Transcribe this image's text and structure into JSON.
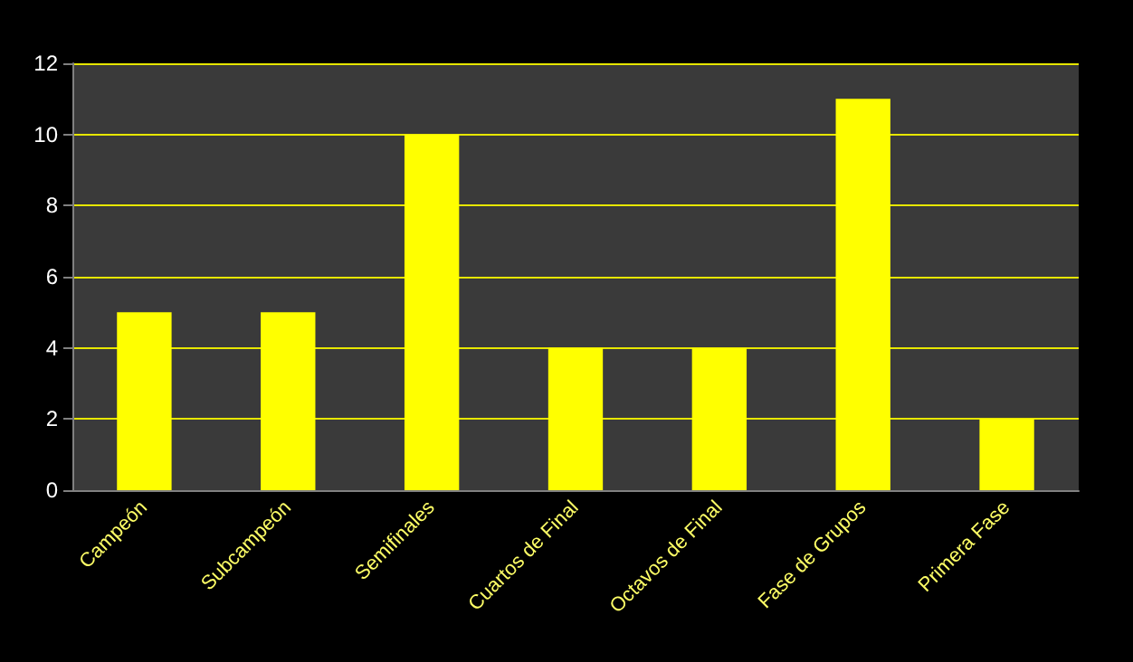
{
  "chart_data": {
    "type": "bar",
    "categories": [
      "Campeón",
      "Subcampeón",
      "Semifinales",
      "Cuartos de Final",
      "Octavos de Final",
      "Fase de Grupos",
      "Primera Fase"
    ],
    "values": [
      5,
      5,
      10,
      4,
      4,
      11,
      2
    ],
    "color": "#ffff00",
    "ylim": [
      0,
      12
    ],
    "yticks": [
      0,
      2,
      4,
      6,
      8,
      10,
      12
    ],
    "grid": true
  }
}
